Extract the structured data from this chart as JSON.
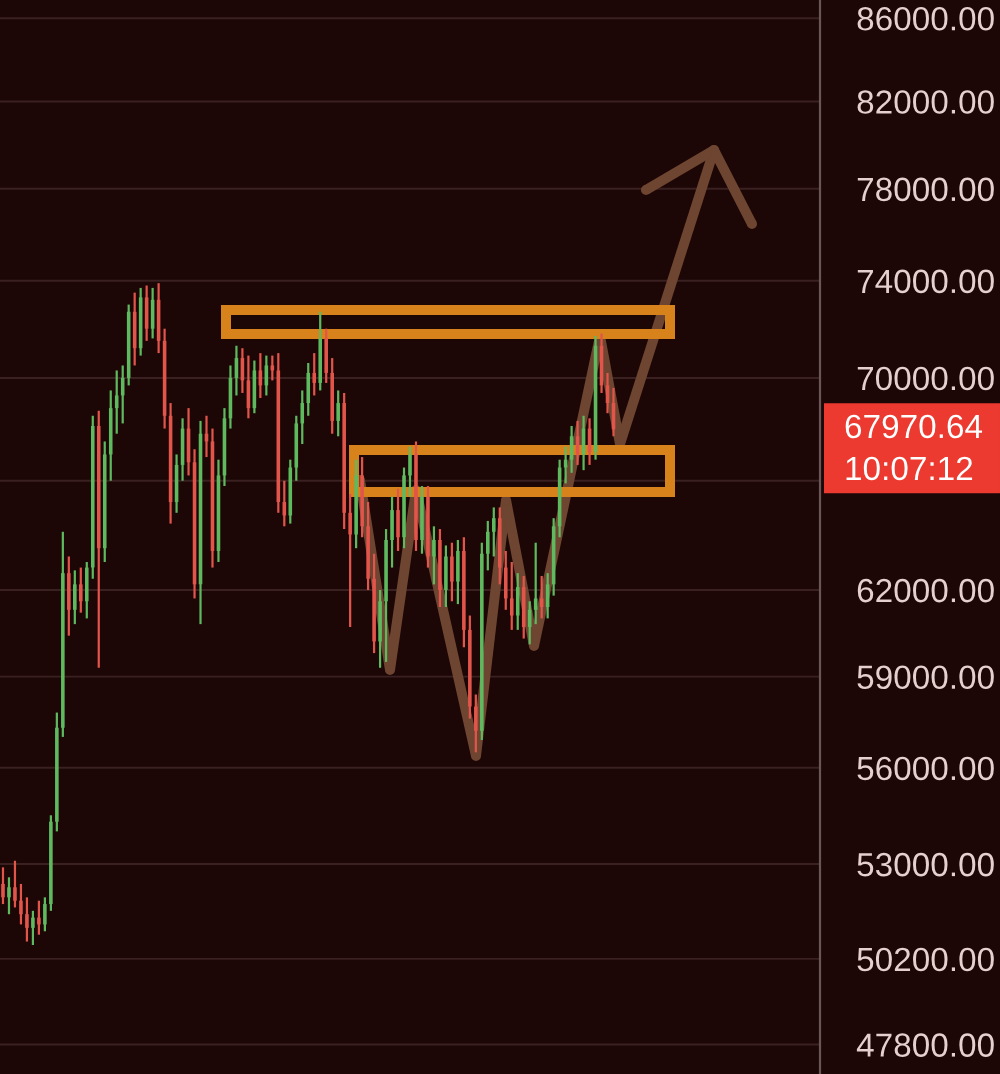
{
  "chart_data": {
    "type": "candlestick",
    "categories": [
      null,
      null,
      null,
      null,
      null,
      null,
      null,
      null,
      null,
      null,
      null,
      null,
      null,
      null,
      null,
      null,
      null,
      null,
      null,
      null,
      null,
      null,
      null,
      null,
      null,
      null,
      null,
      null,
      null,
      null,
      null,
      null,
      null,
      null,
      null,
      null,
      null,
      null,
      null,
      null,
      null,
      null,
      null,
      null,
      null,
      null,
      null,
      null,
      null,
      null,
      null,
      null,
      null,
      null,
      null,
      null,
      null,
      null,
      null,
      null,
      null,
      null,
      null,
      null,
      null,
      null,
      null,
      null,
      null,
      null,
      null,
      null,
      null,
      null,
      null,
      null,
      null,
      null,
      null,
      null,
      null,
      null,
      null,
      null,
      null,
      null,
      null,
      null,
      null,
      null,
      null,
      null,
      null,
      null,
      null,
      null,
      null,
      null,
      null,
      null,
      null,
      null,
      null,
      null,
      null,
      null,
      null,
      null,
      null,
      null,
      null,
      null,
      null,
      null,
      null,
      null,
      null,
      null,
      null,
      null,
      null,
      null,
      null,
      null,
      null,
      null,
      null,
      null,
      null,
      null,
      null,
      null,
      null,
      null,
      null,
      null,
      null
    ],
    "ohlc": [
      [
        52400,
        52900,
        51800,
        52000
      ],
      [
        52000,
        52600,
        51500,
        52300
      ],
      [
        52300,
        53100,
        51700,
        51900
      ],
      [
        51900,
        52400,
        51200,
        51500
      ],
      [
        51500,
        52000,
        50700,
        51100
      ],
      [
        51100,
        51600,
        50600,
        51400
      ],
      [
        51400,
        51900,
        50900,
        51200
      ],
      [
        51200,
        52000,
        51000,
        51800
      ],
      [
        51800,
        54500,
        51600,
        54300
      ],
      [
        54300,
        57800,
        54000,
        57300
      ],
      [
        57300,
        64100,
        57000,
        62600
      ],
      [
        62600,
        63200,
        60400,
        61300
      ],
      [
        61300,
        62700,
        60800,
        62200
      ],
      [
        62200,
        62800,
        61200,
        61600
      ],
      [
        61600,
        63000,
        61000,
        62800
      ],
      [
        62800,
        68500,
        62400,
        68100
      ],
      [
        68100,
        68700,
        59300,
        63500
      ],
      [
        63500,
        67500,
        63000,
        67000
      ],
      [
        67000,
        69500,
        66000,
        68800
      ],
      [
        68800,
        70300,
        67800,
        69300
      ],
      [
        69300,
        70500,
        68200,
        70000
      ],
      [
        70000,
        73000,
        69700,
        72700
      ],
      [
        72700,
        73500,
        70500,
        71200
      ],
      [
        71200,
        73700,
        70900,
        73300
      ],
      [
        73300,
        73800,
        71500,
        72000
      ],
      [
        72000,
        73700,
        71600,
        73200
      ],
      [
        73200,
        73900,
        71000,
        71500
      ],
      [
        71500,
        72000,
        68000,
        68500
      ],
      [
        68500,
        69000,
        64400,
        65200
      ],
      [
        65200,
        67000,
        64800,
        66600
      ],
      [
        66600,
        68400,
        66000,
        68000
      ],
      [
        68000,
        68800,
        66200,
        66700
      ],
      [
        66700,
        67200,
        61700,
        62200
      ],
      [
        62200,
        68300,
        60800,
        67800
      ],
      [
        67800,
        68500,
        66900,
        67500
      ],
      [
        67500,
        68000,
        62800,
        63400
      ],
      [
        63400,
        66800,
        63000,
        66200
      ],
      [
        66200,
        68800,
        65800,
        68400
      ],
      [
        68400,
        70500,
        68000,
        70000
      ],
      [
        70000,
        71300,
        69300,
        70800
      ],
      [
        70800,
        71200,
        69400,
        69900
      ],
      [
        69900,
        70900,
        68400,
        68800
      ],
      [
        68800,
        70700,
        68600,
        70300
      ],
      [
        70300,
        71000,
        69200,
        69700
      ],
      [
        69700,
        70900,
        69300,
        70500
      ],
      [
        70500,
        70900,
        69900,
        70300
      ],
      [
        70300,
        71000,
        64800,
        65200
      ],
      [
        65200,
        66000,
        64300,
        64700
      ],
      [
        64700,
        66800,
        64400,
        66500
      ],
      [
        66500,
        68500,
        66000,
        68200
      ],
      [
        68200,
        69500,
        67400,
        69000
      ],
      [
        69000,
        70600,
        68500,
        70200
      ],
      [
        70200,
        71000,
        69300,
        69800
      ],
      [
        69800,
        72700,
        69500,
        71600
      ],
      [
        71600,
        72000,
        69800,
        70200
      ],
      [
        70200,
        70800,
        67800,
        68300
      ],
      [
        68300,
        69500,
        67700,
        69000
      ],
      [
        69000,
        69400,
        64200,
        64800
      ],
      [
        64800,
        65500,
        60700,
        64000
      ],
      [
        64000,
        66800,
        63500,
        66200
      ],
      [
        66200,
        66900,
        63900,
        64300
      ],
      [
        64300,
        65200,
        62000,
        62400
      ],
      [
        62400,
        63300,
        59800,
        60200
      ],
      [
        60200,
        62000,
        59300,
        61600
      ],
      [
        61600,
        64200,
        59500,
        63800
      ],
      [
        63800,
        65400,
        62800,
        64900
      ],
      [
        64900,
        65700,
        63400,
        63900
      ],
      [
        63900,
        66500,
        63500,
        66200
      ],
      [
        66200,
        67300,
        65400,
        67000
      ],
      [
        67000,
        67500,
        63400,
        63800
      ],
      [
        63800,
        65800,
        63300,
        65400
      ],
      [
        65400,
        65800,
        62800,
        63200
      ],
      [
        63200,
        64300,
        62200,
        63800
      ],
      [
        63800,
        64200,
        61400,
        62000
      ],
      [
        62000,
        63600,
        61400,
        63200
      ],
      [
        63200,
        63700,
        61600,
        62300
      ],
      [
        62300,
        63800,
        61500,
        63400
      ],
      [
        63400,
        63900,
        60000,
        60600
      ],
      [
        60600,
        61100,
        57600,
        58000
      ],
      [
        58000,
        58400,
        56500,
        57200
      ],
      [
        57200,
        63700,
        56900,
        63300
      ],
      [
        63300,
        64500,
        62700,
        64100
      ],
      [
        64100,
        65000,
        63200,
        64600
      ],
      [
        64600,
        65000,
        62200,
        62800
      ],
      [
        62800,
        63400,
        61300,
        61700
      ],
      [
        61700,
        63000,
        60600,
        61100
      ],
      [
        61100,
        62600,
        60600,
        62100
      ],
      [
        62100,
        62500,
        60300,
        60700
      ],
      [
        60700,
        61600,
        60100,
        61300
      ],
      [
        61300,
        63700,
        60800,
        61700
      ],
      [
        61700,
        62500,
        61000,
        61400
      ],
      [
        61400,
        62600,
        61000,
        62200
      ],
      [
        62200,
        64600,
        61800,
        64300
      ],
      [
        64300,
        66800,
        63900,
        66500
      ],
      [
        66500,
        67300,
        65900,
        66800
      ],
      [
        66800,
        68100,
        66300,
        67700
      ],
      [
        67700,
        68300,
        66600,
        67000
      ],
      [
        67000,
        68500,
        66400,
        68000
      ],
      [
        68000,
        68400,
        66600,
        67100
      ],
      [
        67100,
        71700,
        66800,
        71300
      ],
      [
        71300,
        71800,
        69400,
        69700
      ],
      [
        69700,
        70200,
        68600,
        69000
      ],
      [
        69000,
        69600,
        67700,
        67970.64
      ],
      null,
      null,
      null,
      null,
      null,
      null,
      null,
      null,
      null,
      null,
      null,
      null,
      null,
      null,
      null,
      null,
      null,
      null,
      null,
      null,
      null,
      null,
      null,
      null,
      null,
      null,
      null,
      null,
      null,
      null,
      null,
      null,
      null,
      null
    ],
    "colors": [
      "#e1554b",
      "#5fb95f",
      "#e1554b",
      "#e1554b",
      "#e1554b",
      "#5fb95f",
      "#e1554b",
      "#5fb95f",
      "#5fb95f",
      "#5fb95f",
      "#5fb95f",
      "#e1554b",
      "#5fb95f",
      "#e1554b",
      "#5fb95f",
      "#5fb95f",
      "#e1554b",
      "#5fb95f",
      "#5fb95f",
      "#5fb95f",
      "#5fb95f",
      "#5fb95f",
      "#e1554b",
      "#5fb95f",
      "#e1554b",
      "#5fb95f",
      "#e1554b",
      "#e1554b",
      "#e1554b",
      "#5fb95f",
      "#5fb95f",
      "#e1554b",
      "#e1554b",
      "#5fb95f",
      "#e1554b",
      "#e1554b",
      "#5fb95f",
      "#5fb95f",
      "#5fb95f",
      "#5fb95f",
      "#e1554b",
      "#e1554b",
      "#5fb95f",
      "#e1554b",
      "#5fb95f",
      "#e1554b",
      "#e1554b",
      "#e1554b",
      "#5fb95f",
      "#5fb95f",
      "#5fb95f",
      "#5fb95f",
      "#e1554b",
      "#5fb95f",
      "#e1554b",
      "#e1554b",
      "#5fb95f",
      "#e1554b",
      "#e1554b",
      "#5fb95f",
      "#e1554b",
      "#e1554b",
      "#e1554b",
      "#5fb95f",
      "#5fb95f",
      "#5fb95f",
      "#e1554b",
      "#5fb95f",
      "#5fb95f",
      "#e1554b",
      "#5fb95f",
      "#e1554b",
      "#5fb95f",
      "#e1554b",
      "#5fb95f",
      "#e1554b",
      "#5fb95f",
      "#e1554b",
      "#e1554b",
      "#e1554b",
      "#5fb95f",
      "#5fb95f",
      "#5fb95f",
      "#e1554b",
      "#e1554b",
      "#e1554b",
      "#5fb95f",
      "#e1554b",
      "#5fb95f",
      "#5fb95f",
      "#e1554b",
      "#5fb95f",
      "#5fb95f",
      "#5fb95f",
      "#5fb95f",
      "#5fb95f",
      "#e1554b",
      "#5fb95f",
      "#e1554b",
      "#5fb95f",
      "#e1554b",
      "#e1554b",
      "#e1554b",
      null,
      null,
      null,
      null,
      null,
      null,
      null,
      null,
      null,
      null,
      null,
      null,
      null,
      null,
      null,
      null,
      null,
      null,
      null,
      null,
      null,
      null,
      null,
      null,
      null,
      null,
      null,
      null,
      null,
      null,
      null,
      null,
      null,
      null
    ],
    "log": true,
    "ylim": [
      47000,
      86900
    ],
    "yticks": [
      {
        "value": 86000,
        "label": "86000.00"
      },
      {
        "value": 82000,
        "label": "82000.00"
      },
      {
        "value": 78000,
        "label": "78000.00"
      },
      {
        "value": 74000,
        "label": "74000.00"
      },
      {
        "value": 70000,
        "label": "70000.00"
      },
      {
        "value": 66000,
        "label": null
      },
      {
        "value": 62000,
        "label": "62000.00"
      },
      {
        "value": 59000,
        "label": "59000.00"
      },
      {
        "value": 56000,
        "label": "56000.00"
      },
      {
        "value": 53000,
        "label": "53000.00"
      },
      {
        "value": 50200,
        "label": "50200.00"
      },
      {
        "value": 47800,
        "label": "47800.00"
      }
    ],
    "grid": "y",
    "tick_labels": "y",
    "annotations": [
      "67970.64",
      "10:07:12"
    ]
  }
}
